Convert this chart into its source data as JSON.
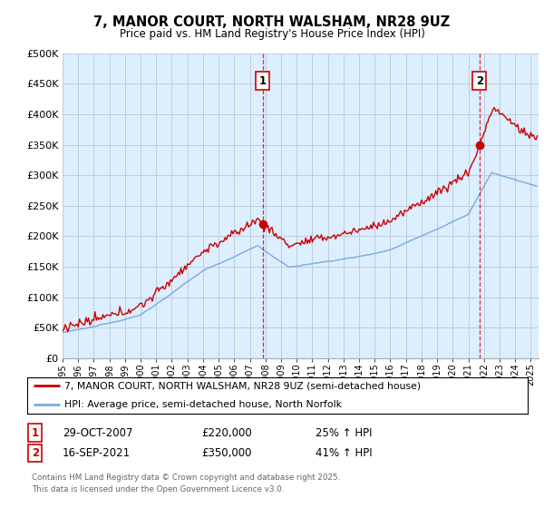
{
  "title": "7, MANOR COURT, NORTH WALSHAM, NR28 9UZ",
  "subtitle": "Price paid vs. HM Land Registry's House Price Index (HPI)",
  "legend_line1": "7, MANOR COURT, NORTH WALSHAM, NR28 9UZ (semi-detached house)",
  "legend_line2": "HPI: Average price, semi-detached house, North Norfolk",
  "annotation1_label": "1",
  "annotation1_date": "29-OCT-2007",
  "annotation1_price": "£220,000",
  "annotation1_hpi": "25% ↑ HPI",
  "annotation2_label": "2",
  "annotation2_date": "16-SEP-2021",
  "annotation2_price": "£350,000",
  "annotation2_hpi": "41% ↑ HPI",
  "footer": "Contains HM Land Registry data © Crown copyright and database right 2025.\nThis data is licensed under the Open Government Licence v3.0.",
  "sale1_year": 2007.83,
  "sale1_value": 220000,
  "sale2_year": 2021.71,
  "sale2_value": 350000,
  "property_line_color": "#cc0000",
  "hpi_line_color": "#7aaadd",
  "plot_bg_color": "#ddeeff",
  "fig_bg_color": "#ffffff",
  "grid_color": "#bbccdd",
  "ylim_min": 0,
  "ylim_max": 500000,
  "xlim_min": 1995,
  "xlim_max": 2025.5
}
